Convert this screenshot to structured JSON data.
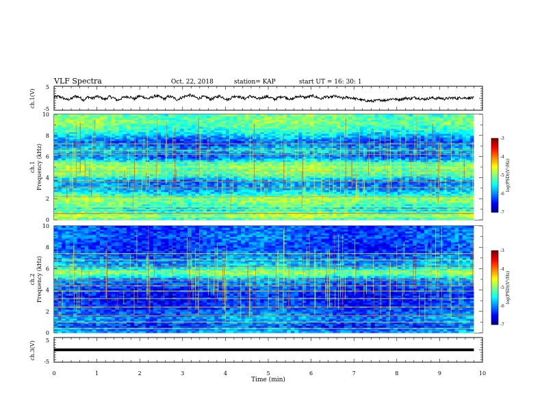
{
  "header": {
    "title": "VLF Spectra",
    "date": "Oct. 22, 2018",
    "station": "station= KAP",
    "start": "start  UT  =   16: 30: 1"
  },
  "chart_data": [
    {
      "type": "line",
      "name": "ch1-waveform",
      "ylabel": "ch.1(V)",
      "xlim": [
        0,
        10
      ],
      "ylim": [
        -5,
        5
      ],
      "yticks": [
        "5",
        "-5"
      ],
      "x_end": 9.8,
      "samples": [
        0.5,
        0.8,
        0.2,
        -0.6,
        -0.3,
        0.9,
        0.4,
        -0.8,
        0.6,
        -0.1,
        0.8,
        0.3,
        -0.5,
        0.7,
        0.2,
        -0.9,
        0.1,
        0.7,
        0.5,
        -0.4,
        0.9,
        0.6,
        -0.2,
        0.3,
        1.1,
        0.5,
        -0.3,
        0.8,
        0.4,
        -0.6,
        0.2,
        0.9,
        1.3,
        0.7,
        -0.1,
        0.6,
        0.4,
        -0.5,
        0.3,
        0.9,
        0.2,
        -0.7,
        0.5,
        1.0,
        0.4,
        -0.2,
        0.8,
        0.6,
        -0.4,
        0.2,
        0.7,
        0.3,
        -0.5,
        0.4,
        0.8,
        0.1,
        -0.6,
        0.5,
        0.9,
        0.3,
        0.6,
        1.0,
        0.4,
        -0.3,
        0.7,
        0.2,
        0.9,
        0.5,
        -0.1,
        0.4,
        0.2,
        -0.2,
        -0.5,
        -0.9,
        -1.1,
        -1.2,
        -1.0,
        -0.7,
        -0.9,
        -0.4,
        -0.2,
        -0.6,
        -0.3,
        0.1,
        -0.2,
        0.3,
        0.0,
        -0.4,
        -0.2,
        0.2,
        -0.1,
        0.1,
        -0.3,
        0.0,
        0.2,
        -0.1,
        0.3,
        0.1,
        0.2,
        0.1
      ]
    },
    {
      "type": "heatmap",
      "name": "ch1-spectrogram",
      "ylabel": "ch.1",
      "ylabel2": "Frequency (kHz)",
      "xlim": [
        0,
        10
      ],
      "ylim": [
        0,
        10
      ],
      "x_end": 9.8,
      "yticks": [
        "0",
        "2",
        "4",
        "6",
        "8",
        "10"
      ],
      "colorbar": {
        "range": [
          -7,
          -3
        ],
        "ticks": [
          "-3",
          "-4",
          "-5",
          "-6",
          "-7"
        ],
        "label": "log(PSD)(V²/Hz)"
      },
      "level_profile": [
        [
          0,
          -5.3
        ],
        [
          0.5,
          -4.8
        ],
        [
          1,
          -5.6
        ],
        [
          1.8,
          -4.9
        ],
        [
          2.2,
          -5.2
        ],
        [
          2.8,
          -5.8
        ],
        [
          3.6,
          -6.0
        ],
        [
          4.4,
          -5.1
        ],
        [
          5.2,
          -5.0
        ],
        [
          6,
          -6.1
        ],
        [
          6.6,
          -5.7
        ],
        [
          7.4,
          -6.2
        ],
        [
          8.5,
          -5.3
        ],
        [
          9.3,
          -5.0
        ],
        [
          10,
          -5.2
        ]
      ],
      "line_freqs": [
        0.3,
        0.6,
        1.0,
        1.25,
        2.0,
        2.2,
        3.05,
        3.6,
        4.15,
        4.6,
        5.0,
        5.4,
        6.2,
        6.6,
        7.2
      ]
    },
    {
      "type": "heatmap",
      "name": "ch2-spectrogram",
      "ylabel": "ch.2",
      "ylabel2": "Frequency (kHz)",
      "xlim": [
        0,
        10
      ],
      "ylim": [
        0,
        10
      ],
      "x_end": 9.8,
      "yticks": [
        "0",
        "2",
        "4",
        "6",
        "8",
        "10"
      ],
      "colorbar": {
        "range": [
          -7,
          -3
        ],
        "ticks": [
          "-3",
          "-4",
          "-5",
          "-6",
          "-7"
        ],
        "label": "log(PSD)(V²/Hz)"
      },
      "level_profile": [
        [
          0,
          -5.8
        ],
        [
          0.6,
          -6.2
        ],
        [
          1.4,
          -5.9
        ],
        [
          2.5,
          -6.3
        ],
        [
          3.6,
          -6.4
        ],
        [
          4.2,
          -6.2
        ],
        [
          5.0,
          -5.9
        ],
        [
          5.6,
          -4.9
        ],
        [
          6.2,
          -5.7
        ],
        [
          7.0,
          -6.0
        ],
        [
          8.0,
          -6.3
        ],
        [
          9.0,
          -6.1
        ],
        [
          10,
          -6.2
        ]
      ],
      "line_freqs": [
        0.4,
        1.0,
        1.6,
        2.4,
        3.2,
        3.9,
        4.4,
        4.9,
        5.8,
        6.2,
        6.8,
        7.4
      ]
    },
    {
      "type": "line",
      "name": "ch3-waveform",
      "ylabel": "ch.3(V)",
      "xlabel": "Time (min)",
      "xlim": [
        0,
        10
      ],
      "ylim": [
        -5,
        5
      ],
      "yticks": [
        "5",
        "-5"
      ],
      "xticks": [
        "0",
        "1",
        "2",
        "3",
        "4",
        "5",
        "6",
        "7",
        "8",
        "9",
        "10"
      ],
      "x_end": 9.8,
      "value": 0
    }
  ]
}
